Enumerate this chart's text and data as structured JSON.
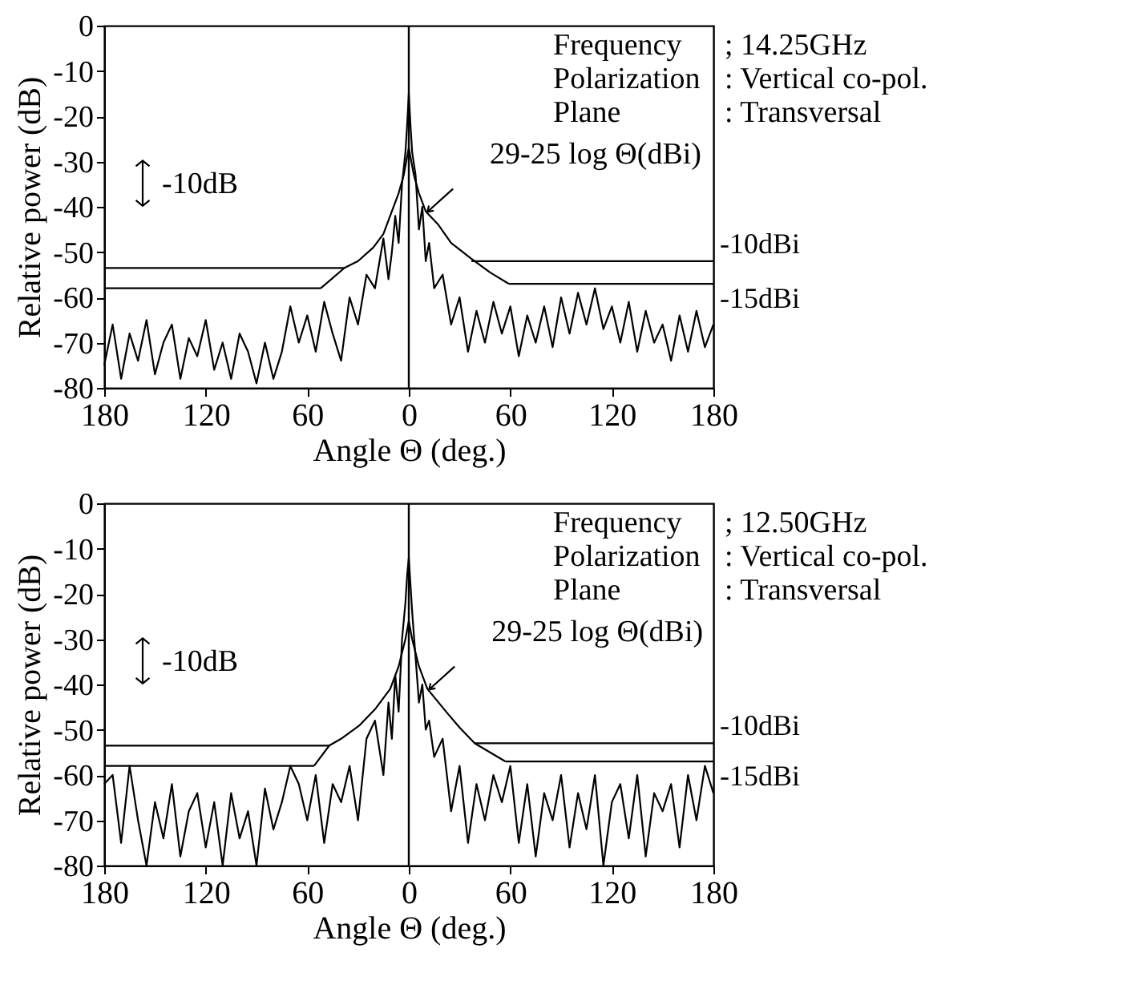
{
  "chart_data": [
    {
      "type": "line",
      "xlabel": "Angle Θ (deg.)",
      "ylabel": "Relative power (dB)",
      "xlim": [
        -180,
        180
      ],
      "xticks": [
        {
          "value": -180,
          "label": "180"
        },
        {
          "value": -120,
          "label": "120"
        },
        {
          "value": -60,
          "label": "60"
        },
        0,
        60,
        120,
        180
      ],
      "ylim": [
        -80,
        0
      ],
      "yticks": [
        0,
        -10,
        -20,
        -30,
        -40,
        -50,
        -60,
        -70,
        -80
      ],
      "annotations": [
        "Frequency",
        "; 14.25GHz",
        "Polarization",
        ": Vertical co-pol.",
        "Plane",
        ": Transversal",
        "-10dB"
      ],
      "ref_lines": [
        {
          "axis": "x",
          "value": 0,
          "color": "#000000"
        }
      ],
      "series": [
        {
          "color": "#000000",
          "x": [
            -180,
            -175,
            -170,
            -165,
            -160,
            -155,
            -150,
            -145,
            -140,
            -135,
            -130,
            -125,
            -120,
            -115,
            -110,
            -105,
            -100,
            -95,
            -90,
            -85,
            -80,
            -75,
            -70,
            -65,
            -60,
            -55,
            -50,
            -45,
            -40,
            -35,
            -30,
            -25,
            -20,
            -15,
            -12,
            -10,
            -8,
            -6,
            -4,
            -2,
            -1,
            0,
            1,
            2,
            4,
            6,
            8,
            10,
            12,
            15,
            20,
            25,
            30,
            35,
            40,
            45,
            50,
            55,
            60,
            65,
            70,
            75,
            80,
            85,
            90,
            95,
            100,
            105,
            110,
            115,
            120,
            125,
            130,
            135,
            140,
            145,
            150,
            155,
            160,
            165,
            170,
            175,
            180
          ],
          "values": [
            -75,
            -66,
            -78,
            -68,
            -74,
            -65,
            -77,
            -70,
            -66,
            -78,
            -69,
            -73,
            -65,
            -76,
            -70,
            -78,
            -68,
            -72,
            -79,
            -70,
            -78,
            -72,
            -62,
            -70,
            -64,
            -72,
            -61,
            -68,
            -74,
            -60,
            -66,
            -55,
            -58,
            -47,
            -56,
            -50,
            -42,
            -48,
            -35,
            -28,
            -22,
            -15,
            -22,
            -28,
            -33,
            -45,
            -40,
            -52,
            -48,
            -58,
            -55,
            -66,
            -60,
            -72,
            -63,
            -70,
            -61,
            -68,
            -62,
            -73,
            -64,
            -70,
            -62,
            -71,
            -60,
            -68,
            -59,
            -66,
            -58,
            -67,
            -62,
            -70,
            -61,
            -72,
            -63,
            -70,
            -66,
            -74,
            -64,
            -72,
            -63,
            -71,
            -66
          ]
        },
        {
          "name": "29-25 log Θ(dBi)",
          "color": "#000000",
          "x": [
            -52,
            -38,
            -30,
            -21,
            -15,
            -10,
            -6,
            -3,
            0,
            3,
            6,
            10,
            17.5,
            25,
            37,
            48,
            59
          ],
          "values": [
            -58,
            -53.5,
            -52,
            -49,
            -46,
            -41,
            -37,
            -33,
            -27,
            -33,
            -37,
            -41,
            -44,
            -48,
            -51.5,
            -54.5,
            -57
          ]
        },
        {
          "name": "-10dBi",
          "color": "#000000",
          "x": [
            -180,
            -38,
            0,
            37,
            180
          ],
          "values": [
            -53.5,
            -53.5,
            null,
            -52,
            -52
          ]
        },
        {
          "name": "-15dBi",
          "color": "#000000",
          "x": [
            -180,
            -52,
            0,
            59,
            180
          ],
          "values": [
            -58,
            -58,
            null,
            -57,
            -57
          ]
        }
      ]
    },
    {
      "type": "line",
      "xlabel": "Angle Θ (deg.)",
      "ylabel": "Relative power (dB)",
      "xlim": [
        -180,
        180
      ],
      "xticks": [
        {
          "value": -180,
          "label": "180"
        },
        {
          "value": -120,
          "label": "120"
        },
        {
          "value": -60,
          "label": "60"
        },
        0,
        60,
        120,
        180
      ],
      "ylim": [
        -80,
        0
      ],
      "yticks": [
        0,
        -10,
        -20,
        -30,
        -40,
        -50,
        -60,
        -70,
        -80
      ],
      "annotations": [
        "Frequency",
        "; 12.50GHz",
        "Polarization",
        ": Vertical co-pol.",
        "Plane",
        ": Transversal",
        "-10dB"
      ],
      "ref_lines": [
        {
          "axis": "x",
          "value": 0,
          "color": "#000000"
        }
      ],
      "series": [
        {
          "color": "#000000",
          "x": [
            -180,
            -175,
            -170,
            -165,
            -160,
            -155,
            -150,
            -145,
            -140,
            -135,
            -130,
            -125,
            -120,
            -115,
            -110,
            -105,
            -100,
            -95,
            -90,
            -85,
            -80,
            -75,
            -70,
            -65,
            -60,
            -55,
            -50,
            -45,
            -40,
            -35,
            -30,
            -25,
            -20,
            -15,
            -12,
            -10,
            -8,
            -6,
            -4,
            -2,
            -1,
            0,
            1,
            2,
            4,
            6,
            8,
            10,
            12,
            15,
            20,
            25,
            30,
            35,
            40,
            45,
            50,
            55,
            60,
            65,
            70,
            75,
            80,
            85,
            90,
            95,
            100,
            105,
            110,
            115,
            120,
            125,
            130,
            135,
            140,
            145,
            150,
            155,
            160,
            165,
            170,
            175,
            180
          ],
          "values": [
            -62,
            -60,
            -75,
            -58,
            -70,
            -80,
            -66,
            -74,
            -62,
            -78,
            -68,
            -64,
            -76,
            -66,
            -80,
            -64,
            -74,
            -68,
            -80,
            -63,
            -72,
            -66,
            -58,
            -62,
            -70,
            -60,
            -75,
            -62,
            -66,
            -58,
            -70,
            -52,
            -48,
            -60,
            -44,
            -52,
            -38,
            -46,
            -30,
            -22,
            -16,
            -12,
            -18,
            -24,
            -34,
            -44,
            -40,
            -50,
            -48,
            -56,
            -52,
            -68,
            -58,
            -75,
            -62,
            -70,
            -60,
            -66,
            -58,
            -75,
            -62,
            -78,
            -64,
            -70,
            -60,
            -76,
            -64,
            -72,
            -60,
            -80,
            -66,
            -62,
            -74,
            -60,
            -78,
            -64,
            -68,
            -62,
            -76,
            -60,
            -70,
            -58,
            -64
          ]
        },
        {
          "name": "29-25 log Θ(dBi)",
          "color": "#000000",
          "x": [
            -56,
            -47,
            -40,
            -29,
            -20,
            -11,
            -6,
            -2,
            0,
            2,
            6,
            11,
            22,
            30,
            39,
            48,
            57
          ],
          "values": [
            -58,
            -53.5,
            -52,
            -49,
            -45.5,
            -41,
            -36,
            -30,
            -26,
            -30,
            -36,
            -41,
            -46,
            -49.5,
            -53,
            -55,
            -57
          ]
        },
        {
          "name": "-10dBi",
          "color": "#000000",
          "x": [
            -180,
            -47,
            0,
            39,
            180
          ],
          "values": [
            -53.5,
            -53.5,
            null,
            -53,
            -53
          ]
        },
        {
          "name": "-15dBi",
          "color": "#000000",
          "x": [
            -180,
            -56,
            0,
            57,
            180
          ],
          "values": [
            -58,
            -58,
            null,
            -57,
            -57
          ]
        }
      ]
    }
  ]
}
